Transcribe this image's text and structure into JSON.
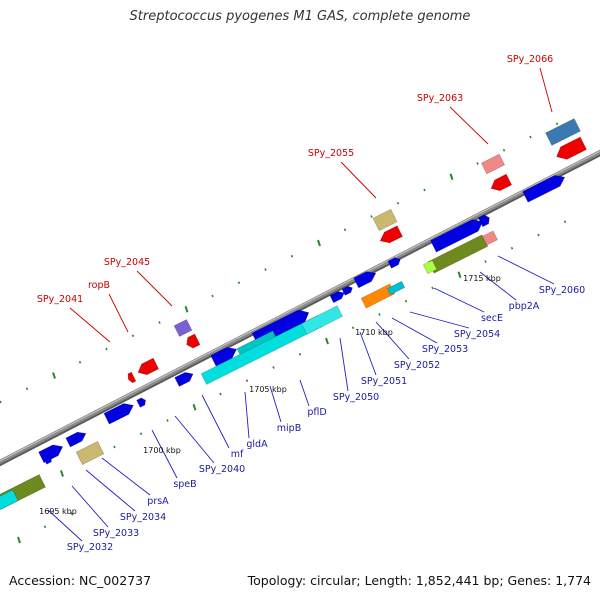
{
  "title": "Streptococcus pyogenes M1 GAS, complete genome",
  "footer": {
    "accession": "Accession: NC_002737",
    "stats": "Topology: circular; Length: 1,852,441 bp; Genes: 1,774"
  },
  "colors": {
    "label_blue": "#1a1aa0",
    "label_red": "#cc0000",
    "gene_blue": "#0000e0",
    "gene_red": "#ee0000",
    "gene_cyan": "#00dede",
    "gene_olive": "#6e8a1e",
    "gene_orange": "#ff8800",
    "gene_pink": "#f08888",
    "gene_khaki": "#c8b870",
    "gene_purple": "#7a60d0",
    "gene_steel": "#3a7ab0",
    "tick_green": "#2a8a2a",
    "backbone": "#8a8a8a"
  },
  "scale_labels": [
    "1695 kbp",
    "1700 kbp",
    "1705 kbp",
    "1710 kbp",
    "1715 kbp"
  ],
  "genes": {
    "forward": [
      "SPy_2032",
      "SPy_2033",
      "SPy_2034",
      "prsA",
      "speB",
      "SPy_2040",
      "mf",
      "gldA",
      "mipB",
      "pflD",
      "SPy_2050",
      "SPy_2051",
      "SPy_2052",
      "SPy_2053",
      "SPy_2054",
      "secE",
      "pbp2A",
      "SPy_2060"
    ],
    "reverse": [
      "SPy_2041",
      "ropB",
      "SPy_2045",
      "SPy_2055",
      "SPy_2063",
      "SPy_2066"
    ]
  }
}
